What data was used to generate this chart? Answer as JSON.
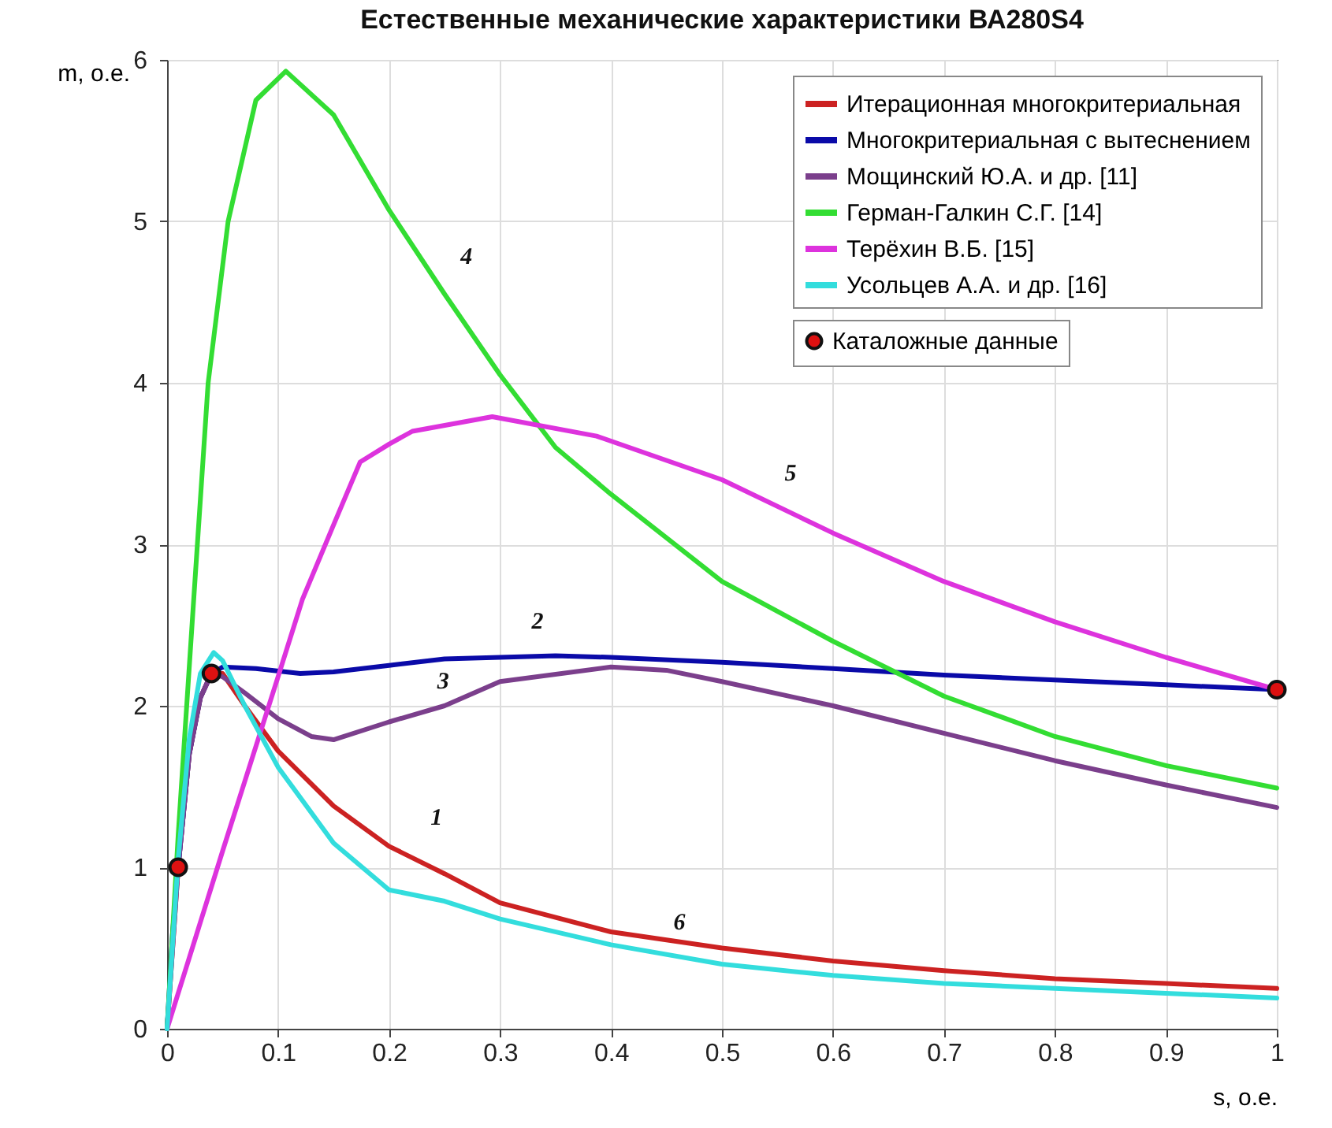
{
  "chart_data": {
    "type": "line",
    "title": "Естественные механические характеристики ВА280S4",
    "xlabel": "s, о.е.",
    "ylabel": "m, о.е.",
    "xlim": [
      0,
      1
    ],
    "xticks": [
      0,
      0.1,
      0.2,
      0.3,
      0.4,
      0.5,
      0.6,
      0.7,
      0.8,
      0.9,
      1
    ],
    "ylim": [
      0,
      6
    ],
    "yticks": [
      0,
      1,
      2,
      3,
      4,
      5,
      6
    ],
    "grid": true,
    "legend": "top right",
    "marker": "none",
    "line_style": "solid",
    "series": [
      {
        "name": "Итерационная многокритериальная",
        "color": "#cc2222",
        "x": [
          0,
          0.01,
          0.02,
          0.03,
          0.04,
          0.05,
          0.07,
          0.1,
          0.15,
          0.2,
          0.25,
          0.3,
          0.4,
          0.5,
          0.6,
          0.7,
          0.8,
          0.9,
          1
        ],
        "values": [
          0,
          1,
          1.7,
          2.05,
          2.2,
          2.2,
          2,
          1.72,
          1.38,
          1.13,
          0.96,
          0.78,
          0.6,
          0.5,
          0.42,
          0.36,
          0.31,
          0.28,
          0.25
        ]
      },
      {
        "name": "Многокритериальная с вытеснением",
        "color": "#0a0aa8",
        "x": [
          0,
          0.005,
          0.01,
          0.02,
          0.03,
          0.04,
          0.05,
          0.08,
          0.12,
          0.15,
          0.2,
          0.25,
          0.3,
          0.35,
          0.4,
          0.5,
          0.6,
          0.7,
          0.8,
          0.9,
          1
        ],
        "values": [
          0,
          0.6,
          1,
          1.7,
          2.05,
          2.2,
          2.24,
          2.23,
          2.2,
          2.21,
          2.25,
          2.29,
          2.3,
          2.31,
          2.3,
          2.27,
          2.23,
          2.19,
          2.16,
          2.13,
          2.1
        ]
      },
      {
        "name": "Мощинский Ю.А. и др. [11]",
        "color": "#7b3f8c",
        "x": [
          0,
          0.01,
          0.02,
          0.03,
          0.04,
          0.05,
          0.07,
          0.1,
          0.13,
          0.15,
          0.2,
          0.25,
          0.3,
          0.4,
          0.45,
          0.5,
          0.6,
          0.7,
          0.8,
          0.9,
          1
        ],
        "values": [
          0,
          1,
          1.7,
          2.05,
          2.2,
          2.18,
          2.08,
          1.92,
          1.81,
          1.79,
          1.9,
          2,
          2.15,
          2.24,
          2.22,
          2.15,
          2,
          1.83,
          1.66,
          1.51,
          1.37
        ]
      },
      {
        "name": "Герман-Галкин С.Г. [14]",
        "color": "#33dd33",
        "x": [
          0,
          0.01,
          0.024,
          0.037,
          0.055,
          0.08,
          0.107,
          0.15,
          0.2,
          0.25,
          0.3,
          0.35,
          0.4,
          0.5,
          0.6,
          0.7,
          0.8,
          0.9,
          1
        ],
        "values": [
          0,
          1.2,
          2.66,
          4,
          5,
          5.75,
          5.93,
          5.66,
          5.07,
          4.55,
          4.05,
          3.6,
          3.31,
          2.77,
          2.4,
          2.06,
          1.81,
          1.63,
          1.49
        ]
      },
      {
        "name": "Терёхин В.Б. [15]",
        "color": "#dd33dd",
        "x": [
          0,
          0.05,
          0.1,
          0.122,
          0.15,
          0.174,
          0.2,
          0.221,
          0.293,
          0.387,
          0.5,
          0.6,
          0.7,
          0.8,
          0.9,
          1
        ],
        "values": [
          0,
          1.1,
          2.18,
          2.66,
          3.12,
          3.51,
          3.62,
          3.7,
          3.79,
          3.67,
          3.4,
          3.07,
          2.77,
          2.52,
          2.3,
          2.1
        ]
      },
      {
        "name": "Усольцев А.А. и др. [16]",
        "color": "#33dddd",
        "x": [
          0,
          0.01,
          0.02,
          0.03,
          0.042,
          0.05,
          0.07,
          0.1,
          0.15,
          0.2,
          0.25,
          0.3,
          0.4,
          0.5,
          0.6,
          0.7,
          0.8,
          0.9,
          1
        ],
        "values": [
          0,
          1.05,
          1.8,
          2.2,
          2.33,
          2.28,
          2,
          1.62,
          1.15,
          0.86,
          0.79,
          0.68,
          0.52,
          0.4,
          0.33,
          0.28,
          0.25,
          0.22,
          0.19
        ]
      },
      {
        "name": "Каталожные данные",
        "type": "scatter",
        "marker": "circle",
        "color": "#dd1111",
        "x": [
          0.01,
          0.04,
          1
        ],
        "values": [
          1,
          2.2,
          2.1
        ]
      }
    ],
    "annotations": [
      {
        "text": "1",
        "x": 0.22,
        "y": 1.1
      },
      {
        "text": "2",
        "x": 0.311,
        "y": 2.31
      },
      {
        "text": "3",
        "x": 0.226,
        "y": 1.94
      },
      {
        "text": "4",
        "x": 0.247,
        "y": 4.57
      },
      {
        "text": "5",
        "x": 0.539,
        "y": 3.23
      },
      {
        "text": "6",
        "x": 0.439,
        "y": 0.45
      }
    ]
  }
}
